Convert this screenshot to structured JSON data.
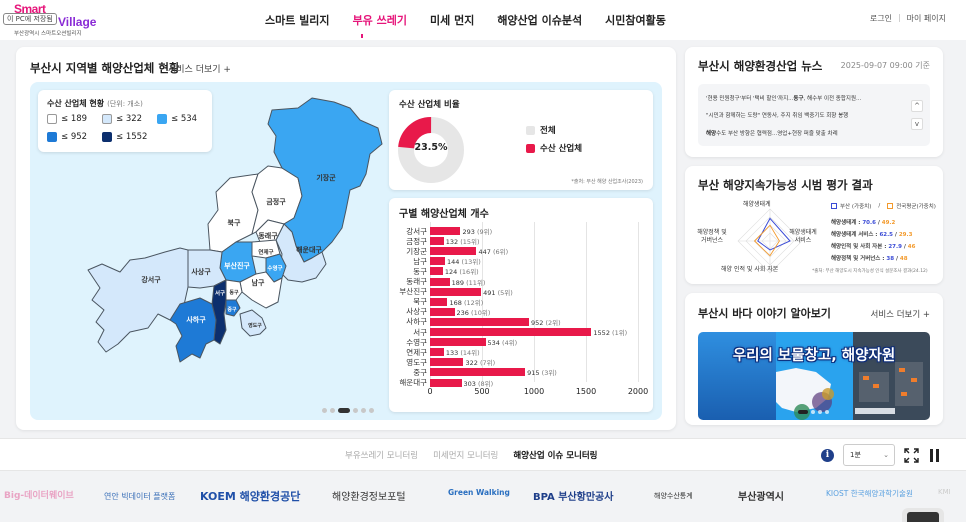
{
  "header": {
    "logo": {
      "line1": "Smart",
      "line2": "Village",
      "subtitle": "부산광역시 스마트오션빌리지",
      "tooltip": "이 PC에 저장됨"
    },
    "nav": [
      {
        "label": "스마트 빌리지",
        "active": false
      },
      {
        "label": "부유 쓰레기",
        "active": true
      },
      {
        "label": "미세 먼지",
        "active": false
      },
      {
        "label": "해양산업 이슈분석",
        "active": false
      },
      {
        "label": "시민참여활동",
        "active": false
      }
    ],
    "links": {
      "login": "로그인",
      "separator": "|",
      "mypage": "마이 페이지"
    },
    "accent_color": "#e6157a"
  },
  "main": {
    "title": "부산시 지역별 해양산업체 현황",
    "more": "서비스 더보기 +",
    "legend": {
      "title": "수산 산업체 현황",
      "unit": "(단위: 개소)",
      "items": [
        {
          "label": "≤ 189",
          "color": "#ffffff"
        },
        {
          "label": "≤ 322",
          "color": "#d4e8fb"
        },
        {
          "label": "≤ 534",
          "color": "#3aa6f2"
        },
        {
          "label": "≤ 952",
          "color": "#1e7ad6"
        },
        {
          "label": "≤ 1552",
          "color": "#0c2f6e"
        }
      ]
    },
    "map_labels": {
      "gijang": "기장군",
      "geumjeong": "금정구",
      "buk": "북구",
      "dongnae": "동래구",
      "yeonje": "연제구",
      "haeundae": "해운대구",
      "gangseo": "강서구",
      "sasang": "사상구",
      "busanjin": "부산진구",
      "suyeong": "수영구",
      "nam": "남구",
      "seo": "서구",
      "dong": "동구",
      "jung": "중구",
      "saha": "사하구",
      "yeongdo": "영도구"
    },
    "carousel": {
      "count": 6,
      "active": 2
    },
    "pie": {
      "title": "수산 산업체 비율",
      "center_label": "23.5%",
      "legend": [
        {
          "label": "전체",
          "color": "#e6e6e6"
        },
        {
          "label": "수산 산업체",
          "color": "#e8194a"
        }
      ],
      "source": "*출처: 부산 해양 산업조사(2023)"
    },
    "bar": {
      "title": "구별 해양산업체 개수",
      "bar_color": "#e8194a"
    }
  },
  "chart_data": [
    {
      "type": "pie",
      "title": "수산 산업체 비율",
      "categories": [
        "전체",
        "수산 산업체"
      ],
      "values": [
        76.5,
        23.5
      ],
      "colors": [
        "#e6e6e6",
        "#e8194a"
      ]
    },
    {
      "type": "bar",
      "orientation": "horizontal",
      "title": "구별 해양산업체 개수",
      "categories": [
        "강서구",
        "금정구",
        "기장군",
        "남구",
        "동구",
        "동래구",
        "부산진구",
        "북구",
        "사상구",
        "사하구",
        "서구",
        "수영구",
        "연제구",
        "영도구",
        "중구",
        "해운대구"
      ],
      "values": [
        293,
        132,
        447,
        144,
        124,
        189,
        491,
        168,
        236,
        952,
        1552,
        534,
        133,
        322,
        915,
        303
      ],
      "ranks": [
        "(9위)",
        "(15위)",
        "(6위)",
        "(13위)",
        "(16위)",
        "(11위)",
        "(5위)",
        "(12위)",
        "(10위)",
        "(2위)",
        "(1위)",
        "(4위)",
        "(14위)",
        "(7위)",
        "(3위)",
        "(8위)"
      ],
      "xticks": [
        "0",
        "500",
        "1000",
        "1500",
        "2000"
      ],
      "xlim": [
        0,
        2000
      ],
      "grid": true
    },
    {
      "type": "radar",
      "title": "부산 해양지속가능성 시범 평가 결과",
      "axes": [
        "해양생태계",
        "해양생태계 서비스",
        "해양 인적 및 사회 자본",
        "해양정책 및 거버넌스"
      ],
      "series": [
        {
          "name": "부산 (가중치)",
          "values": [
            70.6,
            62.5,
            27.9,
            38
          ],
          "color": "#3a4bd6"
        },
        {
          "name": "전국평균(가중치)",
          "values": [
            49.2,
            29.3,
            46,
            48
          ],
          "color": "#f39a2c"
        }
      ],
      "rlim": [
        0,
        100
      ]
    }
  ],
  "news": {
    "title": "부산시 해양환경산업 뉴스",
    "date": "2025-09-07 09:00 기준",
    "items": [
      {
        "pre": "'현용 민원청구'부터 '택비 할인'까지...",
        "bold": "동구",
        "post": ", 해수부 이전 종합지원..."
      },
      {
        "pre": "\"시민과 함께하는 도량\" 연동사, 주지 취임 백중기도 회향 봉행",
        "bold": "",
        "post": ""
      },
      {
        "pre": "",
        "bold": "해양",
        "post": "수도 부산 방향은 협력점...영업+현장 퍼즐 맞출 차례"
      }
    ],
    "up": "^",
    "down": "v"
  },
  "eval": {
    "title": "부산 해양지속가능성 시범 평가 결과",
    "legend": {
      "busan": "부산 (가중치)",
      "slash": "/",
      "national": "전국평균(가중치)"
    },
    "axis_labels": {
      "top": "해양생태계",
      "right": "해양생태계\n서비스",
      "bottom": "해양 인적 및 사회 자본",
      "left": "해양정책 및\n거버넌스"
    },
    "rows": [
      {
        "label": "해양생태계 : ",
        "busan": "70.6",
        "national": "49.2"
      },
      {
        "label": "해양생태계 서비스 : ",
        "busan": "62.5",
        "national": "29.3"
      },
      {
        "label": "해양인적 및 사회 자본 : ",
        "busan": "27.9",
        "national": "46"
      },
      {
        "label": "해양정책 및 거버넌스 : ",
        "busan": "38",
        "national": "48"
      }
    ],
    "source": "*출처: 부산 해양도시 지속가능성 인식 설문조사 결과(24.12)"
  },
  "story": {
    "title": "부산시 바다 이야기 알아보기",
    "more": "서비스 더보기 +",
    "banner_text": "우리의 보물창고, 해양자원"
  },
  "monitor": {
    "tabs": [
      {
        "label": "부유쓰레기 모니터링",
        "active": false
      },
      {
        "label": "미세먼지 모니터링",
        "active": false
      },
      {
        "label": "해양산업 이슈 모니터링",
        "active": true
      }
    ],
    "interval": "1분",
    "info": "i"
  },
  "partners": [
    "Big-데이터웨이브",
    "연안 빅데이터 플랫폼",
    "KOEM 해양환경공단",
    "해양환경정보포털",
    "Green Walking",
    "BPA 부산항만공사",
    "해양수산통계",
    "부산광역시",
    "KIOST 한국해양과학기술원",
    "KMI"
  ]
}
